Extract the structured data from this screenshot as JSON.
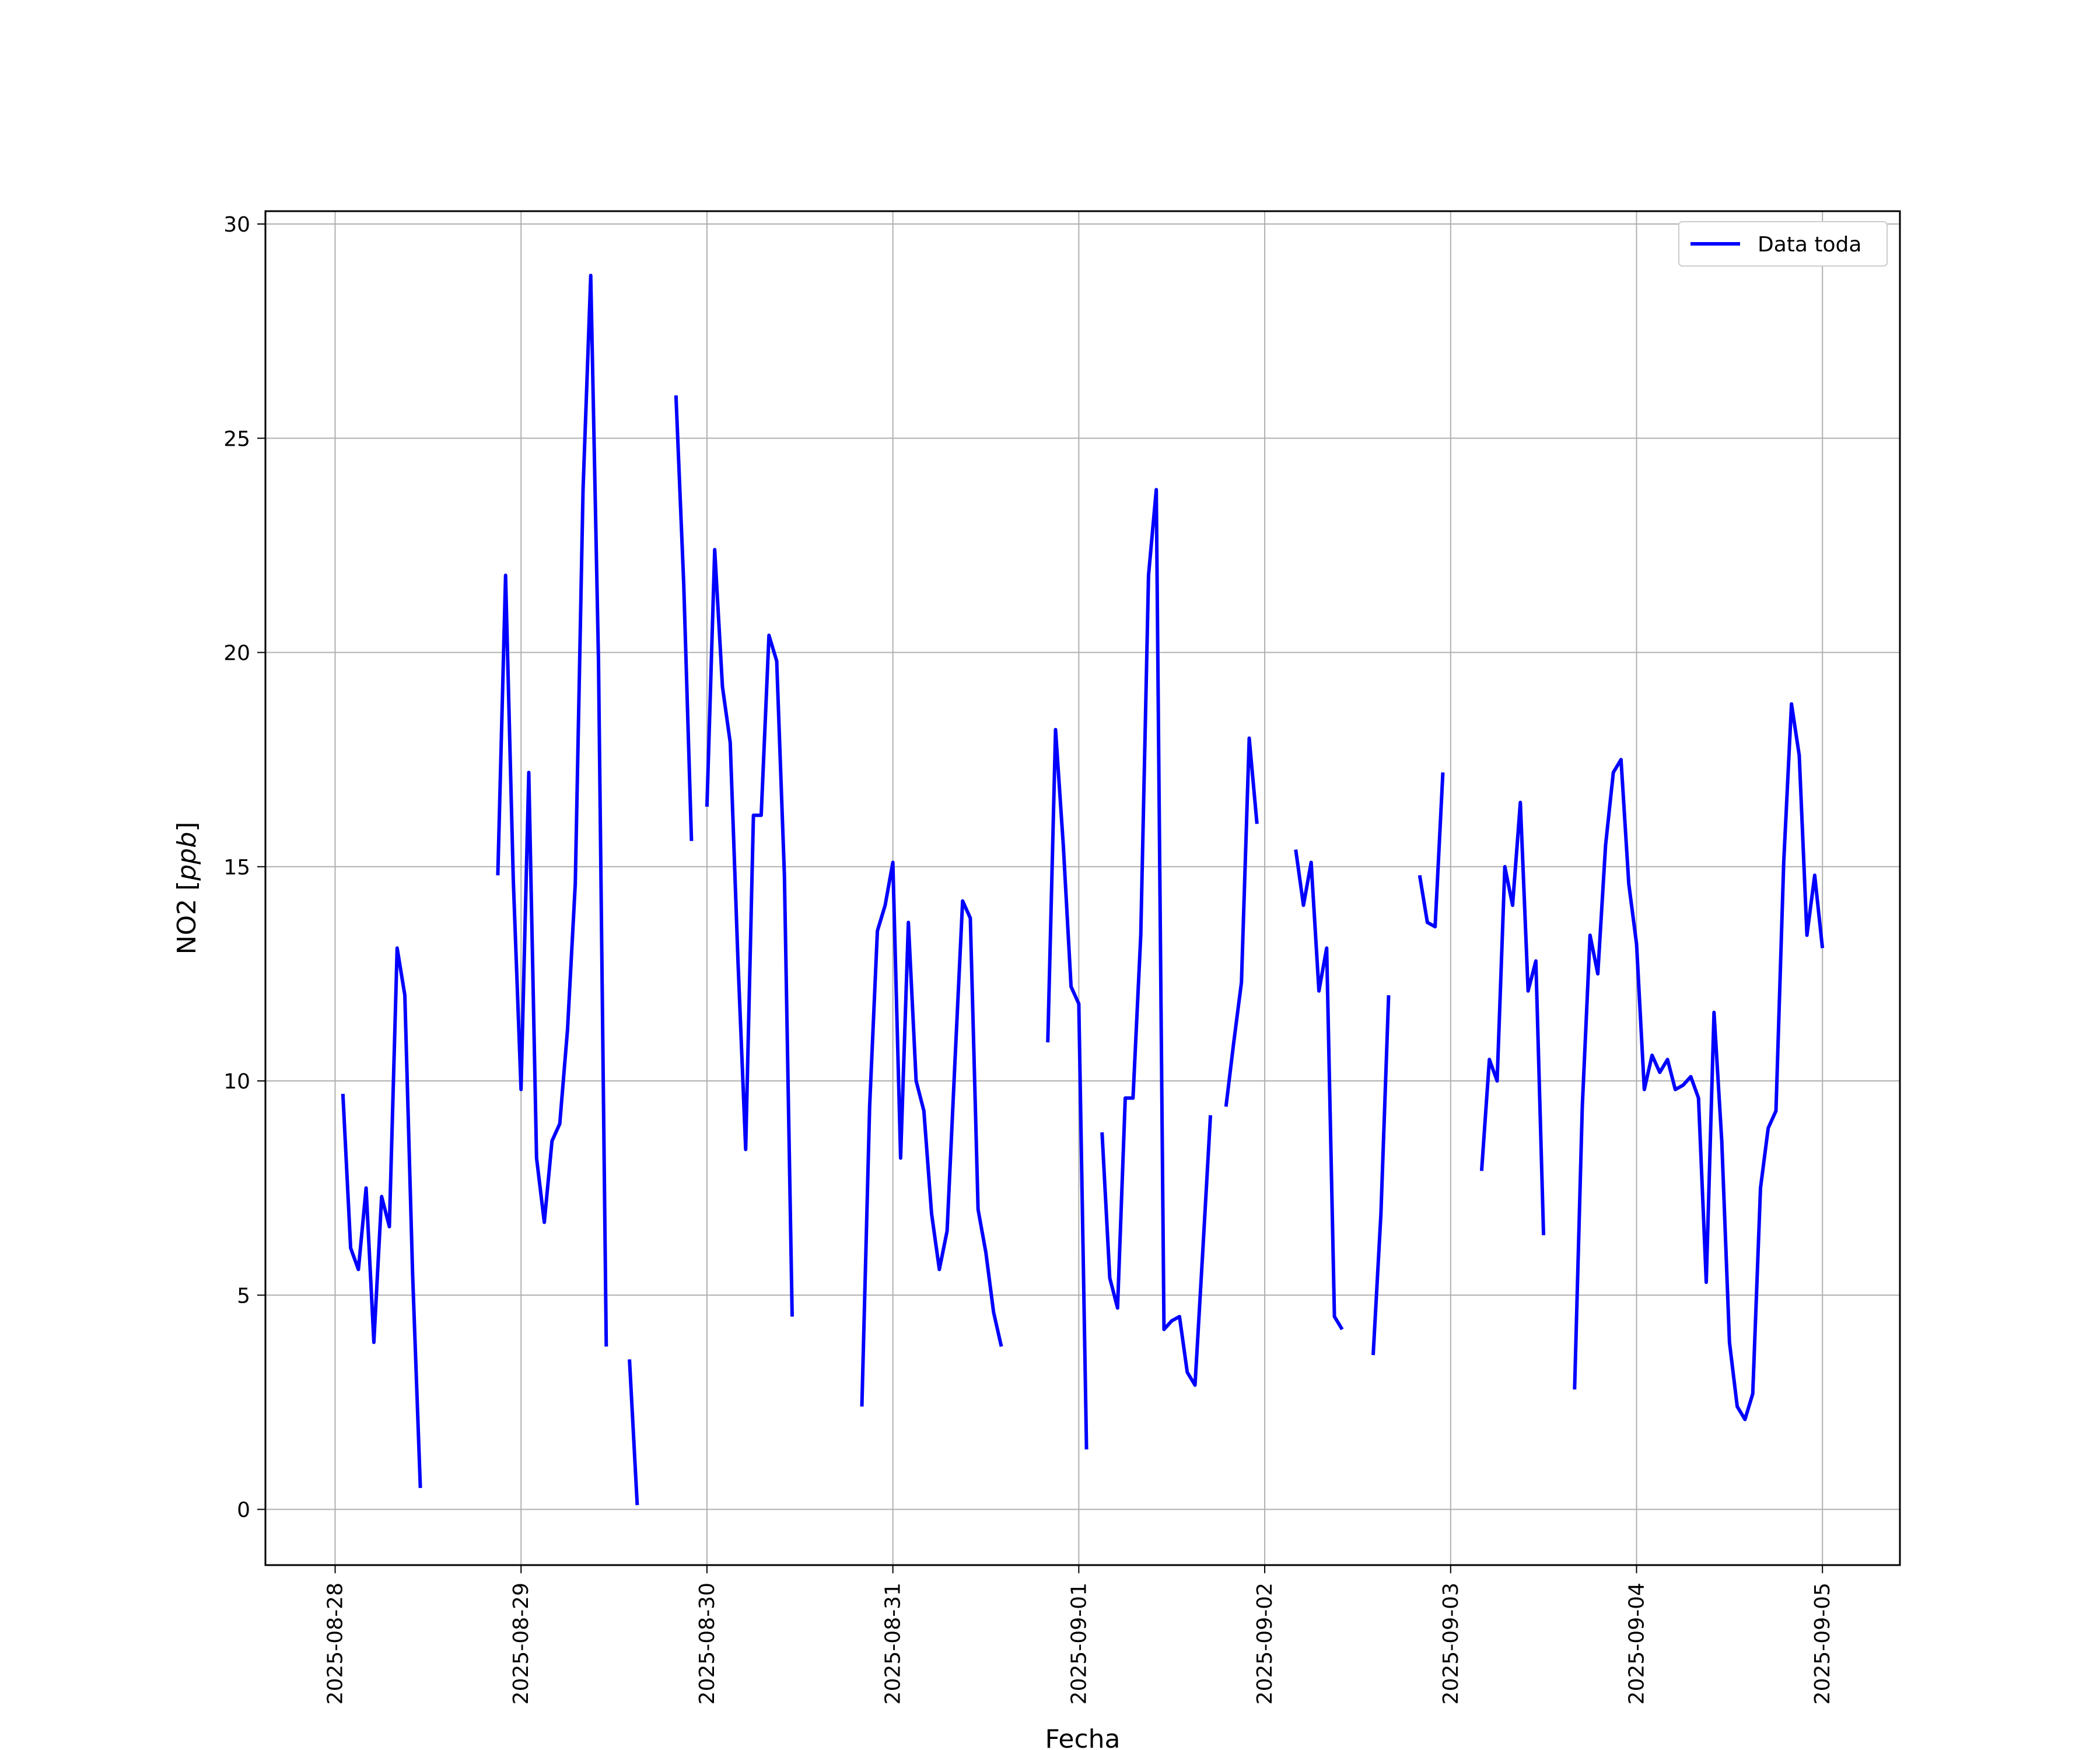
{
  "chart_data": {
    "type": "line",
    "title": "",
    "xlabel": "Fecha",
    "ylabel": "NO2 [ppb]",
    "ylabel_main": "NO2 [",
    "ylabel_unit": "ppb",
    "ylabel_close": "]",
    "ylim": [
      -1.3,
      30.3
    ],
    "yticks": [
      0,
      5,
      10,
      15,
      20,
      25,
      30
    ],
    "xlim": [
      "2025-08-27T15:00",
      "2025-09-05T10:00"
    ],
    "xticks": [
      "2025-08-28",
      "2025-08-29",
      "2025-08-30",
      "2025-08-31",
      "2025-09-01",
      "2025-09-02",
      "2025-09-03",
      "2025-09-04",
      "2025-09-05"
    ],
    "grid": true,
    "legend_position": "top-right",
    "line_color": "#0000ff",
    "series": [
      {
        "name": "Data toda",
        "segments": [
          [
            [
              "2025-08-28T01:00",
              9.7
            ],
            [
              "2025-08-28T02:00",
              6.1
            ],
            [
              "2025-08-28T03:00",
              5.6
            ],
            [
              "2025-08-28T04:00",
              7.5
            ],
            [
              "2025-08-28T05:00",
              3.9
            ],
            [
              "2025-08-28T06:00",
              7.3
            ],
            [
              "2025-08-28T07:00",
              6.6
            ],
            [
              "2025-08-28T08:00",
              13.1
            ],
            [
              "2025-08-28T09:00",
              12.0
            ],
            [
              "2025-08-28T10:00",
              5.5
            ],
            [
              "2025-08-28T11:00",
              0.5
            ]
          ],
          [
            [
              "2025-08-28T21:00",
              14.8
            ],
            [
              "2025-08-28T22:00",
              21.8
            ],
            [
              "2025-08-28T23:00",
              14.7
            ],
            [
              "2025-08-29T00:00",
              9.8
            ],
            [
              "2025-08-29T01:00",
              17.2
            ],
            [
              "2025-08-29T02:00",
              8.2
            ],
            [
              "2025-08-29T03:00",
              6.7
            ],
            [
              "2025-08-29T04:00",
              8.6
            ],
            [
              "2025-08-29T05:00",
              9.0
            ],
            [
              "2025-08-29T06:00",
              11.2
            ],
            [
              "2025-08-29T07:00",
              14.6
            ],
            [
              "2025-08-29T08:00",
              23.8
            ],
            [
              "2025-08-29T09:00",
              28.8
            ],
            [
              "2025-08-29T10:00",
              19.8
            ],
            [
              "2025-08-29T11:00",
              3.8
            ]
          ],
          [
            [
              "2025-08-29T14:00",
              3.5
            ],
            [
              "2025-08-29T15:00",
              0.1
            ]
          ],
          [
            [
              "2025-08-29T20:00",
              26.0
            ],
            [
              "2025-08-29T21:00",
              21.6
            ],
            [
              "2025-08-29T22:00",
              15.6
            ]
          ],
          [
            [
              "2025-08-30T00:00",
              16.4
            ],
            [
              "2025-08-30T01:00",
              22.4
            ],
            [
              "2025-08-30T02:00",
              19.2
            ],
            [
              "2025-08-30T03:00",
              17.9
            ],
            [
              "2025-08-30T04:00",
              12.8
            ],
            [
              "2025-08-30T05:00",
              8.4
            ],
            [
              "2025-08-30T06:00",
              16.2
            ],
            [
              "2025-08-30T07:00",
              16.2
            ],
            [
              "2025-08-30T08:00",
              20.4
            ],
            [
              "2025-08-30T09:00",
              19.8
            ],
            [
              "2025-08-30T10:00",
              14.8
            ],
            [
              "2025-08-30T11:00",
              4.5
            ]
          ],
          [
            [
              "2025-08-30T20:00",
              2.4
            ],
            [
              "2025-08-30T21:00",
              9.4
            ],
            [
              "2025-08-30T22:00",
              13.5
            ],
            [
              "2025-08-30T23:00",
              14.1
            ],
            [
              "2025-08-31T00:00",
              15.1
            ],
            [
              "2025-08-31T01:00",
              8.2
            ],
            [
              "2025-08-31T02:00",
              13.7
            ],
            [
              "2025-08-31T03:00",
              10.0
            ],
            [
              "2025-08-31T04:00",
              9.3
            ],
            [
              "2025-08-31T05:00",
              6.9
            ],
            [
              "2025-08-31T06:00",
              5.6
            ],
            [
              "2025-08-31T07:00",
              6.5
            ],
            [
              "2025-08-31T08:00",
              10.4
            ],
            [
              "2025-08-31T09:00",
              14.2
            ],
            [
              "2025-08-31T10:00",
              13.8
            ],
            [
              "2025-08-31T11:00",
              7.0
            ],
            [
              "2025-08-31T12:00",
              6.0
            ],
            [
              "2025-08-31T13:00",
              4.6
            ],
            [
              "2025-08-31T14:00",
              3.8
            ]
          ],
          [
            [
              "2025-08-31T20:00",
              10.9
            ],
            [
              "2025-08-31T21:00",
              18.2
            ],
            [
              "2025-08-31T22:00",
              15.5
            ],
            [
              "2025-08-31T23:00",
              12.2
            ],
            [
              "2025-09-01T00:00",
              11.8
            ],
            [
              "2025-09-01T01:00",
              1.4
            ]
          ],
          [
            [
              "2025-09-01T03:00",
              8.8
            ],
            [
              "2025-09-01T04:00",
              5.4
            ],
            [
              "2025-09-01T05:00",
              4.7
            ],
            [
              "2025-09-01T06:00",
              9.6
            ],
            [
              "2025-09-01T07:00",
              9.6
            ],
            [
              "2025-09-01T08:00",
              13.4
            ],
            [
              "2025-09-01T09:00",
              21.8
            ],
            [
              "2025-09-01T10:00",
              23.8
            ],
            [
              "2025-09-01T11:00",
              4.2
            ],
            [
              "2025-09-01T12:00",
              4.4
            ],
            [
              "2025-09-01T13:00",
              4.5
            ],
            [
              "2025-09-01T14:00",
              3.2
            ],
            [
              "2025-09-01T15:00",
              2.9
            ],
            [
              "2025-09-01T16:00",
              6.0
            ],
            [
              "2025-09-01T17:00",
              9.2
            ]
          ],
          [
            [
              "2025-09-01T19:00",
              9.4
            ],
            [
              "2025-09-01T20:00",
              10.9
            ],
            [
              "2025-09-01T21:00",
              12.3
            ],
            [
              "2025-09-01T22:00",
              18.0
            ],
            [
              "2025-09-01T23:00",
              16.0
            ]
          ],
          [
            [
              "2025-09-02T04:00",
              15.4
            ],
            [
              "2025-09-02T05:00",
              14.1
            ],
            [
              "2025-09-02T06:00",
              15.1
            ],
            [
              "2025-09-02T07:00",
              12.1
            ],
            [
              "2025-09-02T08:00",
              13.1
            ],
            [
              "2025-09-02T09:00",
              4.5
            ],
            [
              "2025-09-02T10:00",
              4.2
            ]
          ],
          [
            [
              "2025-09-02T14:00",
              3.6
            ],
            [
              "2025-09-02T15:00",
              6.9
            ],
            [
              "2025-09-02T16:00",
              12.0
            ]
          ],
          [
            [
              "2025-09-02T20:00",
              14.8
            ],
            [
              "2025-09-02T21:00",
              13.7
            ],
            [
              "2025-09-02T22:00",
              13.6
            ],
            [
              "2025-09-02T23:00",
              17.2
            ]
          ],
          [
            [
              "2025-09-03T04:00",
              7.9
            ],
            [
              "2025-09-03T05:00",
              10.5
            ],
            [
              "2025-09-03T06:00",
              10.0
            ],
            [
              "2025-09-03T07:00",
              15.0
            ],
            [
              "2025-09-03T08:00",
              14.1
            ],
            [
              "2025-09-03T09:00",
              16.5
            ],
            [
              "2025-09-03T10:00",
              12.1
            ],
            [
              "2025-09-03T11:00",
              12.8
            ],
            [
              "2025-09-03T12:00",
              6.4
            ]
          ],
          [
            [
              "2025-09-03T16:00",
              2.8
            ],
            [
              "2025-09-03T17:00",
              9.4
            ],
            [
              "2025-09-03T18:00",
              13.4
            ],
            [
              "2025-09-03T19:00",
              12.5
            ],
            [
              "2025-09-03T20:00",
              15.5
            ],
            [
              "2025-09-03T21:00",
              17.2
            ],
            [
              "2025-09-03T22:00",
              17.5
            ],
            [
              "2025-09-03T23:00",
              14.6
            ],
            [
              "2025-09-04T00:00",
              13.2
            ],
            [
              "2025-09-04T01:00",
              9.8
            ],
            [
              "2025-09-04T02:00",
              10.6
            ],
            [
              "2025-09-04T03:00",
              10.2
            ],
            [
              "2025-09-04T04:00",
              10.5
            ],
            [
              "2025-09-04T05:00",
              9.8
            ],
            [
              "2025-09-04T06:00",
              9.9
            ],
            [
              "2025-09-04T07:00",
              10.1
            ],
            [
              "2025-09-04T08:00",
              9.6
            ],
            [
              "2025-09-04T09:00",
              5.3
            ],
            [
              "2025-09-04T10:00",
              11.6
            ],
            [
              "2025-09-04T11:00",
              8.6
            ],
            [
              "2025-09-04T12:00",
              3.9
            ],
            [
              "2025-09-04T13:00",
              2.4
            ],
            [
              "2025-09-04T14:00",
              2.1
            ],
            [
              "2025-09-04T15:00",
              2.7
            ],
            [
              "2025-09-04T16:00",
              7.5
            ],
            [
              "2025-09-04T17:00",
              8.9
            ],
            [
              "2025-09-04T18:00",
              9.3
            ],
            [
              "2025-09-04T19:00",
              15.1
            ],
            [
              "2025-09-04T20:00",
              18.8
            ],
            [
              "2025-09-04T21:00",
              17.6
            ],
            [
              "2025-09-04T22:00",
              13.4
            ],
            [
              "2025-09-04T23:00",
              14.8
            ],
            [
              "2025-09-05T00:00",
              13.1
            ]
          ]
        ]
      }
    ]
  }
}
